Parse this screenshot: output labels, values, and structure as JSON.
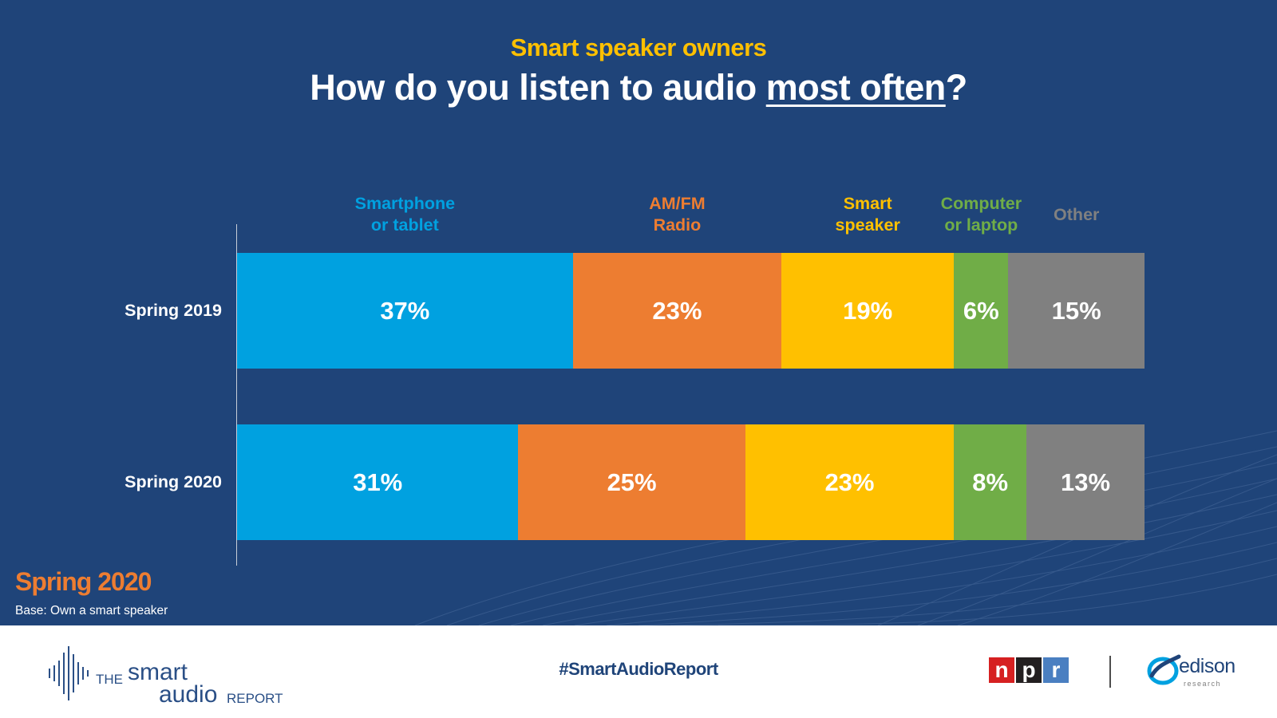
{
  "subtitle": "Smart speaker owners",
  "title": {
    "before": "How do you listen to audio ",
    "emphasis": "most often",
    "after": "?"
  },
  "chart_data": {
    "type": "bar",
    "orientation": "horizontal",
    "stacked": true,
    "unit": "%",
    "categories": [
      "Spring 2019",
      "Spring 2020"
    ],
    "series": [
      {
        "name": "Smartphone\nor tablet",
        "color": "#00a1e0",
        "values": [
          37,
          31
        ],
        "labels": [
          "37%",
          "31%"
        ]
      },
      {
        "name": "AM/FM\nRadio",
        "color": "#ed7d31",
        "values": [
          23,
          25
        ],
        "labels": [
          "23%",
          "25%"
        ]
      },
      {
        "name": "Smart\nspeaker",
        "color": "#ffc000",
        "values": [
          19,
          23
        ],
        "labels": [
          "19%",
          "23%"
        ]
      },
      {
        "name": "Computer\nor laptop",
        "color": "#70ad47",
        "values": [
          6,
          8
        ],
        "labels": [
          "6%",
          "8%"
        ]
      },
      {
        "name": "Other",
        "color": "#808080",
        "values": [
          15,
          13
        ],
        "labels": [
          "15%",
          "13%"
        ]
      }
    ],
    "legend": "top",
    "grid": false
  },
  "footnote": {
    "period": "Spring 2020",
    "base": "Base: Own a smart speaker"
  },
  "footer": {
    "brand": {
      "the": "THE",
      "smart": "smart",
      "audio": "audio",
      "report": "REPORT"
    },
    "hashtag": "#SmartAudioReport",
    "npr": [
      "n",
      "p",
      "r"
    ],
    "edison": {
      "name": "edison",
      "sub": "research"
    }
  },
  "colors": {
    "background": "#1f4479",
    "accent": "#ffc000",
    "npr_n": "#d62021",
    "npr_p": "#231f20",
    "npr_r": "#4a7fc1"
  }
}
